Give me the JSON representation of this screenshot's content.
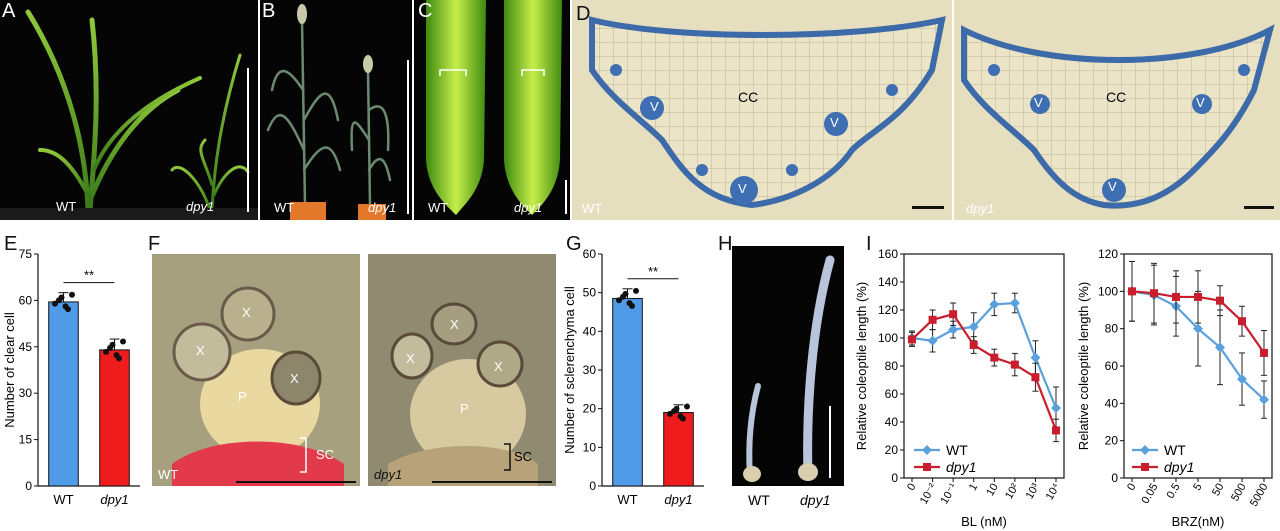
{
  "panels": {
    "A": {
      "letter": "A",
      "wt": "WT",
      "mut": "dpy1"
    },
    "B": {
      "letter": "B",
      "wt": "WT",
      "mut": "dpy1"
    },
    "C": {
      "letter": "C",
      "wt": "WT",
      "mut": "dpy1"
    },
    "D": {
      "letter": "D",
      "wt": "WT",
      "mut": "dpy1",
      "cc": "CC",
      "v": "V"
    },
    "E": {
      "letter": "E"
    },
    "F": {
      "letter": "F",
      "wt": "WT",
      "mut": "dpy1",
      "x": "X",
      "p": "P",
      "sc": "SC"
    },
    "G": {
      "letter": "G"
    },
    "H": {
      "letter": "H",
      "wt": "WT",
      "mut": "dpy1"
    },
    "I": {
      "letter": "I"
    }
  },
  "chart_data": [
    {
      "id": "E",
      "type": "bar",
      "categories": [
        "WT",
        "dpy1"
      ],
      "values": [
        59.5,
        44
      ],
      "errors": [
        3,
        3.5
      ],
      "ylabel": "Number of clear cell",
      "ylim": [
        0,
        75
      ],
      "yticks": [
        0,
        15,
        30,
        45,
        60,
        75
      ],
      "significance": "**",
      "colors": [
        "#4f9be8",
        "#ee1c1c"
      ]
    },
    {
      "id": "G",
      "type": "bar",
      "categories": [
        "WT",
        "dpy1"
      ],
      "values": [
        48.5,
        19
      ],
      "errors": [
        2.5,
        2
      ],
      "ylabel": "Number of sclerenchyma cell",
      "ylim": [
        0,
        60
      ],
      "yticks": [
        0,
        10,
        20,
        30,
        40,
        50,
        60
      ],
      "significance": "**",
      "colors": [
        "#4f9be8",
        "#ee1c1c"
      ]
    },
    {
      "id": "I1",
      "type": "line",
      "x": [
        "0",
        "10⁻²",
        "10⁻¹",
        "1",
        "10",
        "10²",
        "10³",
        "10⁴"
      ],
      "xlabel": "BL (nM)",
      "ylabel": "Relative coleoptile length (%)",
      "ylim": [
        0,
        160
      ],
      "yticks": [
        0,
        20,
        40,
        60,
        80,
        100,
        120,
        140,
        160
      ],
      "legend": "bottom-left",
      "series": [
        {
          "name": "WT",
          "color": "#5aa0dc",
          "values": [
            100,
            98,
            106,
            108,
            124,
            125,
            86,
            50
          ],
          "errors": [
            5,
            8,
            6,
            10,
            8,
            7,
            12,
            15
          ]
        },
        {
          "name": "dpy1",
          "color": "#c81e2e",
          "values": [
            99,
            113,
            117,
            95,
            86,
            81,
            72,
            34
          ],
          "errors": [
            5,
            7,
            8,
            6,
            6,
            8,
            10,
            8
          ]
        }
      ]
    },
    {
      "id": "I2",
      "type": "line",
      "x": [
        "0",
        "0.05",
        "0.5",
        "5",
        "50",
        "500",
        "5000"
      ],
      "xlabel": "BRZ(nM)",
      "ylabel": "Relative coleoptile length (%)",
      "ylim": [
        0,
        120
      ],
      "yticks": [
        0,
        20,
        40,
        60,
        80,
        100,
        120
      ],
      "legend": "bottom-left",
      "series": [
        {
          "name": "WT",
          "color": "#5aa0dc",
          "values": [
            100,
            98,
            92,
            80,
            70,
            53,
            42
          ],
          "errors": [
            16,
            16,
            16,
            20,
            20,
            14,
            10
          ]
        },
        {
          "name": "dpy1",
          "color": "#c81e2e",
          "values": [
            100,
            99,
            97,
            97,
            95,
            84,
            67
          ],
          "errors": [
            16,
            16,
            14,
            14,
            8,
            8,
            12
          ]
        }
      ]
    }
  ]
}
